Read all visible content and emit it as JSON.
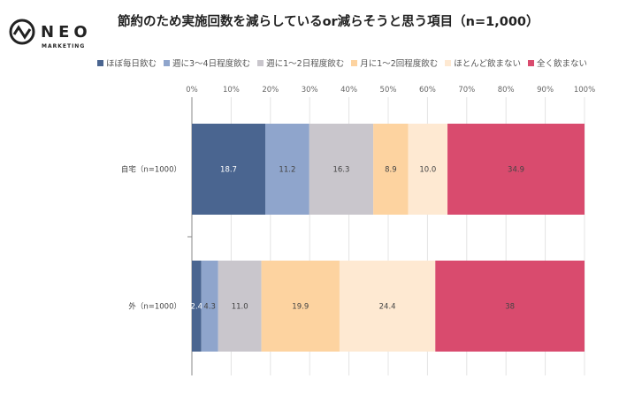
{
  "logo": {
    "name": "NEO",
    "sub": "MARKETING"
  },
  "chart_data": {
    "type": "bar",
    "orientation": "horizontal",
    "stacked": "percent",
    "title": "節約のため実施回数を減らしているor減らそうと思う項目（n=1,000）",
    "categories": [
      "自宅（n=1000）",
      "外（n=1000）"
    ],
    "series": [
      {
        "name": "ほぼ毎日飲む",
        "color": "#4a6590",
        "values": [
          18.7,
          2.4
        ]
      },
      {
        "name": "週に3～4日程度飲む",
        "color": "#8fa5cc",
        "values": [
          11.2,
          4.3
        ]
      },
      {
        "name": "週に1～2日程度飲む",
        "color": "#c9c6cc",
        "values": [
          16.3,
          11.0
        ]
      },
      {
        "name": "月に1～2回程度飲む",
        "color": "#fdd3a0",
        "values": [
          8.9,
          19.9
        ]
      },
      {
        "name": "ほとんど飲まない",
        "color": "#fee9d2",
        "values": [
          10.0,
          24.4
        ]
      },
      {
        "name": "全く飲まない",
        "color": "#d94b6e",
        "values": [
          34.9,
          38
        ]
      }
    ],
    "labels": [
      [
        "18.7",
        "11.2",
        "16.3",
        "8.9",
        "10.0",
        "34.9"
      ],
      [
        "2.4",
        "4.3",
        "11.0",
        "19.9",
        "24.4",
        "38"
      ]
    ],
    "xticks": [
      "0%",
      "10%",
      "20%",
      "30%",
      "40%",
      "50%",
      "60%",
      "70%",
      "80%",
      "90%",
      "100%"
    ],
    "xlim": [
      0,
      100
    ],
    "grid": true,
    "legend": "top"
  }
}
